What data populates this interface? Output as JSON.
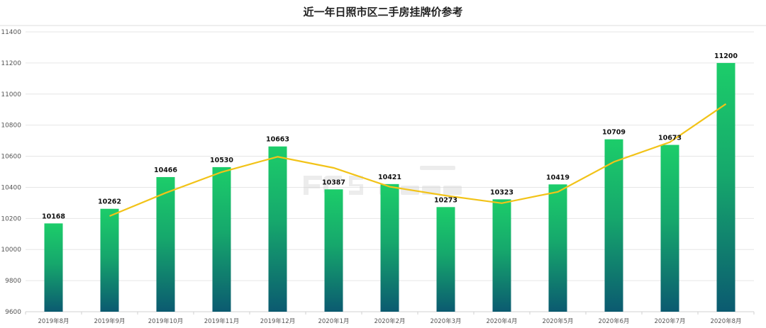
{
  "chart_data": {
    "type": "bar",
    "title": "近一年日照市区二手房挂牌价参考",
    "categories": [
      "2019年8月",
      "2019年9月",
      "2019年10月",
      "2019年11月",
      "2019年12月",
      "2020年1月",
      "2020年2月",
      "2020年3月",
      "2020年4月",
      "2020年5月",
      "2020年6月",
      "2020年7月",
      "2020年8月"
    ],
    "series": [
      {
        "type": "bar",
        "values": [
          10168,
          10262,
          10466,
          10530,
          10663,
          10387,
          10421,
          10273,
          10323,
          10419,
          10709,
          10673,
          11200
        ],
        "color_top": "#1ccd6a",
        "color_bottom": "#0b5a70"
      },
      {
        "type": "line",
        "trendline": "2-period moving average",
        "values": [
          null,
          10215,
          10364,
          10498,
          10596.5,
          10525,
          10404,
          10347,
          10298,
          10371,
          10564,
          10691,
          10936.5
        ],
        "color": "#f2c318"
      }
    ],
    "xlabel": "",
    "ylabel": "",
    "ylim": [
      9600,
      11400
    ],
    "yticks": [
      9600,
      9800,
      10000,
      10200,
      10400,
      10600,
      10800,
      11000,
      11200,
      11400
    ],
    "grid": true,
    "data_labels": true,
    "watermark": {
      "text": "fccs.com 房产超市",
      "logo": "FCCS"
    }
  }
}
